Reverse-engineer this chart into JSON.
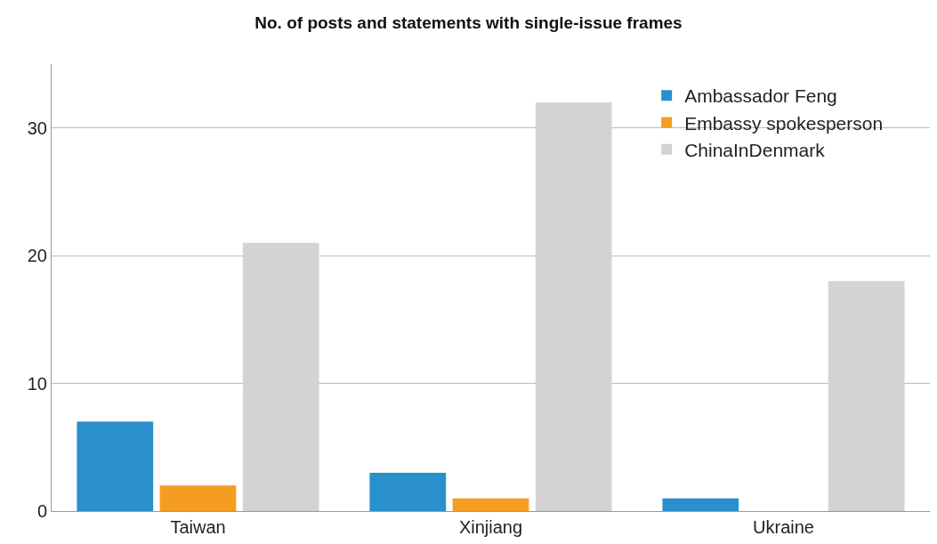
{
  "chart_data": {
    "type": "bar",
    "title": "No. of posts and statements with single-issue frames",
    "categories": [
      "Taiwan",
      "Xinjiang",
      "Ukraine"
    ],
    "series": [
      {
        "name": "Ambassador Feng",
        "color": "#2a8fcd",
        "values": [
          7,
          3,
          1
        ]
      },
      {
        "name": "Embassy spokesperson",
        "color": "#f59d22",
        "values": [
          2,
          1,
          0
        ]
      },
      {
        "name": "ChinaInDenmark",
        "color": "#d3d3d5",
        "values": [
          21,
          32,
          18
        ]
      }
    ],
    "ylim": [
      0,
      35
    ],
    "yticks": [
      0,
      10,
      20,
      30
    ],
    "grid": "y",
    "legend": "top right"
  }
}
